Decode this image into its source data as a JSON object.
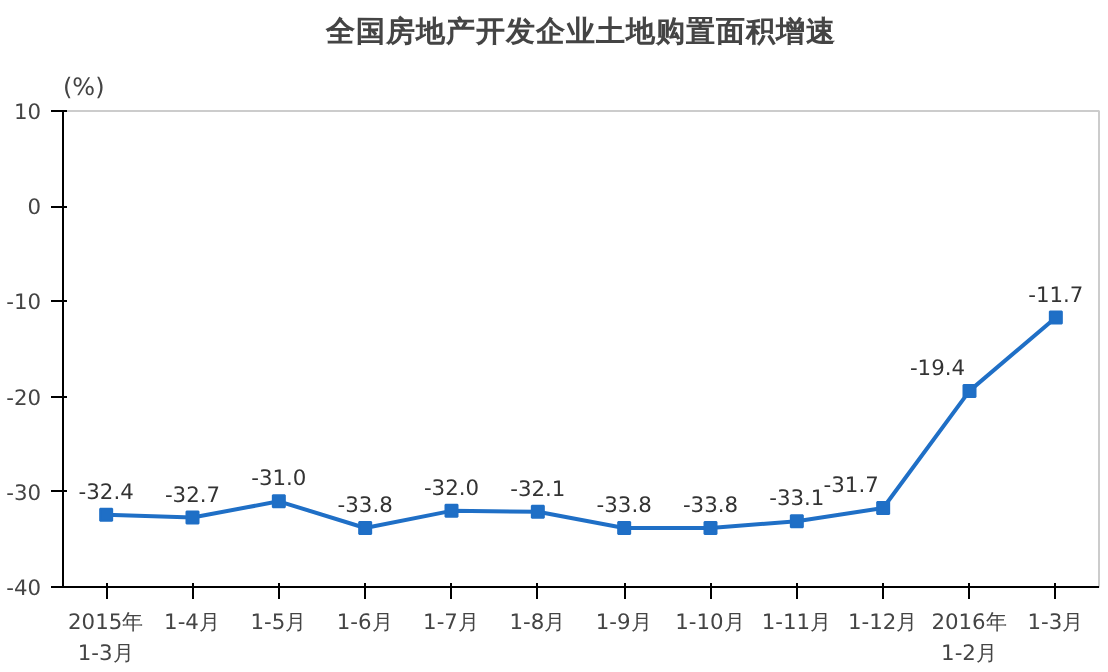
{
  "chart_data": {
    "type": "line",
    "title": "全国房地产开发企业土地购置面积增速",
    "ylabel": "(%)",
    "categories": [
      "2015年\n1-3月",
      "1-4月",
      "1-5月",
      "1-6月",
      "1-7月",
      "1-8月",
      "1-9月",
      "1-10月",
      "1-11月",
      "1-12月",
      "2016年\n1-2月",
      "1-3月"
    ],
    "series": [
      {
        "color": "#1f6fc6",
        "values": [
          -32.4,
          -32.7,
          -31.0,
          -33.8,
          -32.0,
          -32.1,
          -33.8,
          -33.8,
          -33.1,
          -31.7,
          -19.4,
          -11.7
        ],
        "value_labels": [
          "-32.4",
          "-32.7",
          "-31.0",
          "-33.8",
          "-32.0",
          "-32.1",
          "-33.8",
          "-33.8",
          "-33.1",
          "-31.7",
          "-19.4",
          "-11.7"
        ]
      }
    ],
    "ylim": [
      -40,
      10
    ],
    "yticks": [
      -40,
      -30,
      -20,
      -10,
      0,
      10
    ],
    "grid": false,
    "marker": "square",
    "line_style": "solid"
  }
}
